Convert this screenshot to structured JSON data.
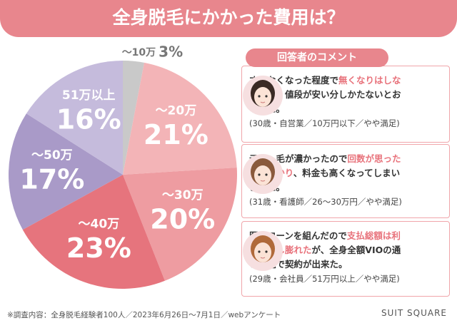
{
  "chart_data": {
    "type": "pie",
    "title": "全身脱毛にかかった費用は？",
    "categories": [
      "〜10万",
      "〜20万",
      "〜30万",
      "〜40万",
      "〜50万",
      "51万以上"
    ],
    "values": [
      3,
      21,
      20,
      23,
      17,
      16
    ],
    "value_labels": [
      "3%",
      "21%",
      "20%",
      "23%",
      "17%",
      "16%"
    ],
    "colors": [
      "#c9c9c9",
      "#f3b4b7",
      "#ee9ca1",
      "#e6747d",
      "#a99ac8",
      "#c5bbdc"
    ]
  },
  "comments": {
    "heading": "回答者のコメント",
    "items": [
      {
        "segments": [
          {
            "text": "すくなくなった程度で"
          },
          {
            "text": "無くなりはしなかった。",
            "em": true
          },
          {
            "text": "値段が安い分しかたないとおもった。"
          }
        ],
        "attribution": "(30歳・自営業／10万円以下／やや満足)"
      },
      {
        "segments": [
          {
            "text": "元々、毛が濃かったので"
          },
          {
            "text": "回数が思ったよりかかり",
            "em": true
          },
          {
            "text": "、料金も高くなってしまいました。"
          }
        ],
        "attribution": "(31歳・看護師／26〜30万円／やや満足)"
      },
      {
        "segments": [
          {
            "text": "医療ローンを組んだので"
          },
          {
            "text": "支払総額は利息で少し膨れた",
            "em": true
          },
          {
            "text": "が、全身全額VIOの通い放題で契約が出来た。"
          }
        ],
        "attribution": "(29歳・会社員／51万円以上／やや満足)"
      }
    ]
  },
  "footer": {
    "note": "※調査内容：全身脱毛経験者100人／2023年6月26日〜7月1日／webアンケート",
    "brand": "SUIT SQUARE"
  }
}
